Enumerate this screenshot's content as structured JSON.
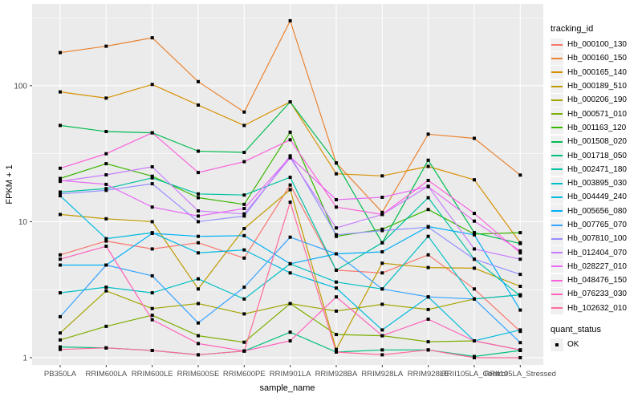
{
  "chart_data": {
    "type": "line",
    "title": "",
    "xlabel": "sample_name",
    "ylabel": "FPKM + 1",
    "y_scale": "log10",
    "ylim": [
      0.95,
      400
    ],
    "y_ticks": [
      1,
      10,
      100
    ],
    "y_minor_ticks": [
      3.162,
      31.62,
      316.2
    ],
    "grid": "on",
    "legend_position": "right",
    "legend_title": "tracking_id",
    "legend2_title": "quant_status",
    "legend2_items": [
      "OK"
    ],
    "point_shape": "filled-black-square",
    "panel_bg": "#ebebeb",
    "grid_color": "#ffffff",
    "categories": [
      "PB350LA",
      "RRIM600LA",
      "RRIM600LE",
      "RRIM600SE",
      "RRIM600PE",
      "RRIM901LA",
      "RRIM928BA",
      "RRIM928LA",
      "RRIM928LE",
      "RRII105LA_Control",
      "RRII105LA_Stressed"
    ],
    "series": [
      {
        "name": "Hb_000100_130",
        "color": "#F8766D",
        "values": [
          5.7,
          7.2,
          6.3,
          7.0,
          5.4,
          18.6,
          4.4,
          4.2,
          5.7,
          3.2,
          1.56
        ]
      },
      {
        "name": "Hb_000160_150",
        "color": "#EA8331",
        "values": [
          175,
          195,
          225,
          107,
          64,
          300,
          27,
          11.7,
          44,
          41,
          22
        ]
      },
      {
        "name": "Hb_000165_140",
        "color": "#D89000",
        "values": [
          90,
          81,
          102,
          72,
          51,
          76,
          22.5,
          21.7,
          25.5,
          20.3,
          7.0
        ]
      },
      {
        "name": "Hb_000189_510",
        "color": "#C09B00",
        "values": [
          11.3,
          10.5,
          10.0,
          3.2,
          8.9,
          17.2,
          1.15,
          4.95,
          4.6,
          4.55,
          3.35
        ]
      },
      {
        "name": "Hb_000206_190",
        "color": "#A3A500",
        "values": [
          1.52,
          3.1,
          2.3,
          2.5,
          2.1,
          2.5,
          2.2,
          2.47,
          2.26,
          2.7,
          2.9
        ]
      },
      {
        "name": "Hb_000571_010",
        "color": "#7CAE00",
        "values": [
          1.35,
          1.7,
          2.05,
          1.45,
          1.3,
          2.5,
          1.48,
          1.45,
          1.31,
          1.33,
          1.14
        ]
      },
      {
        "name": "Hb_001163_120",
        "color": "#39B600",
        "values": [
          20.8,
          26.7,
          21.6,
          15.0,
          13.4,
          45.5,
          7.8,
          8.8,
          12.3,
          8.1,
          8.3
        ]
      },
      {
        "name": "Hb_001508_020",
        "color": "#00BB4E",
        "values": [
          51,
          46,
          45,
          33,
          32.3,
          76,
          27,
          7.0,
          28.3,
          8.3,
          6.9
        ]
      },
      {
        "name": "Hb_001718_050",
        "color": "#00BF7D",
        "values": [
          1.2,
          1.18,
          1.13,
          1.05,
          1.12,
          1.54,
          1.1,
          1.14,
          1.14,
          1.02,
          1.13
        ]
      },
      {
        "name": "Hb_002471_180",
        "color": "#00C1A3",
        "values": [
          16.5,
          17.5,
          21.0,
          16.0,
          15.7,
          21.2,
          4.4,
          7.0,
          15.0,
          5.3,
          2.85
        ]
      },
      {
        "name": "Hb_003895_030",
        "color": "#00BFC4",
        "values": [
          3.0,
          3.3,
          3.0,
          3.8,
          2.7,
          4.9,
          3.6,
          3.2,
          7.8,
          2.7,
          2.9
        ]
      },
      {
        "name": "Hb_004449_240",
        "color": "#00BAE0",
        "values": [
          15.5,
          7.5,
          8.3,
          5.9,
          6.2,
          4.2,
          3.25,
          1.6,
          2.8,
          1.33,
          1.6
        ]
      },
      {
        "name": "Hb_005656_080",
        "color": "#00B0F6",
        "values": [
          4.8,
          4.8,
          8.2,
          7.8,
          7.9,
          4.9,
          5.8,
          6.0,
          9.2,
          8.0,
          2.24
        ]
      },
      {
        "name": "Hb_007765_070",
        "color": "#35A2FF",
        "values": [
          2.0,
          4.8,
          4.0,
          1.8,
          3.3,
          7.7,
          5.8,
          3.2,
          2.8,
          2.7,
          1.29
        ]
      },
      {
        "name": "Hb_007810_100",
        "color": "#9590FF",
        "values": [
          16.0,
          17.0,
          19.0,
          10.0,
          11.0,
          30.5,
          8.0,
          8.6,
          9.1,
          5.3,
          4.1
        ]
      },
      {
        "name": "Hb_012404_070",
        "color": "#C77CFF",
        "values": [
          19.8,
          22.1,
          25.3,
          12.0,
          11.4,
          29.5,
          9.0,
          11.3,
          18.2,
          6.3,
          5.3
        ]
      },
      {
        "name": "Hb_028227_010",
        "color": "#E76BF3",
        "values": [
          20.1,
          18.8,
          12.8,
          11.0,
          12.5,
          30.0,
          14.5,
          15.1,
          18.1,
          10.1,
          6.1
        ]
      },
      {
        "name": "Hb_048476_150",
        "color": "#FA62DB",
        "values": [
          24.7,
          31.6,
          45.0,
          23.0,
          27.6,
          40.0,
          12.8,
          11.3,
          20.1,
          11.5,
          5.9
        ]
      },
      {
        "name": "Hb_076233_030",
        "color": "#FF62BC",
        "values": [
          5.3,
          6.6,
          1.9,
          1.27,
          1.12,
          1.33,
          2.8,
          1.45,
          1.92,
          1.33,
          1.14
        ]
      },
      {
        "name": "Hb_102632_010",
        "color": "#FF6A98",
        "values": [
          1.15,
          1.18,
          1.13,
          1.05,
          1.12,
          13.9,
          1.1,
          1.05,
          1.14,
          1.0,
          1.0
        ]
      }
    ]
  }
}
